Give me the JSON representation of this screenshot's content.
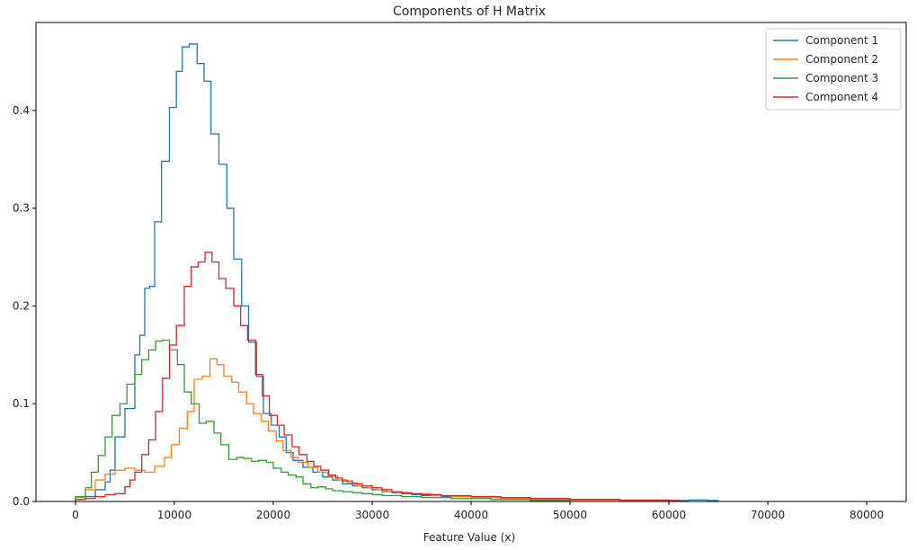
{
  "chart_data": {
    "type": "histogram-step",
    "title": "Components of H Matrix",
    "xlabel": "Feature Value (x)",
    "ylabel": "",
    "xlim": [
      -4000,
      84000
    ],
    "ylim": [
      0,
      0.49
    ],
    "xticks": [
      0,
      10000,
      20000,
      30000,
      40000,
      50000,
      60000,
      70000,
      80000
    ],
    "yticks": [
      0.0,
      0.1,
      0.2,
      0.3,
      0.4
    ],
    "ytick_labels": [
      "0.0",
      "0.1",
      "0.2",
      "0.3",
      "0.4"
    ],
    "grid": false,
    "legend_position": "top-right",
    "series": [
      {
        "name": "Component 1",
        "color": "#1f77b4",
        "points": [
          [
            0,
            0.002
          ],
          [
            1000,
            0.005
          ],
          [
            2000,
            0.012
          ],
          [
            3000,
            0.02
          ],
          [
            3500,
            0.032
          ],
          [
            4000,
            0.066
          ],
          [
            5000,
            0.095
          ],
          [
            6000,
            0.15
          ],
          [
            6500,
            0.17
          ],
          [
            7000,
            0.218
          ],
          [
            7500,
            0.22
          ],
          [
            8000,
            0.286
          ],
          [
            8700,
            0.348
          ],
          [
            9500,
            0.403
          ],
          [
            10200,
            0.44
          ],
          [
            10800,
            0.465
          ],
          [
            11500,
            0.468
          ],
          [
            12300,
            0.448
          ],
          [
            13000,
            0.43
          ],
          [
            13700,
            0.376
          ],
          [
            14500,
            0.345
          ],
          [
            15300,
            0.3
          ],
          [
            16000,
            0.248
          ],
          [
            16800,
            0.2
          ],
          [
            17500,
            0.163
          ],
          [
            18300,
            0.128
          ],
          [
            19000,
            0.09
          ],
          [
            19800,
            0.078
          ],
          [
            20600,
            0.066
          ],
          [
            21300,
            0.05
          ],
          [
            22000,
            0.042
          ],
          [
            23000,
            0.035
          ],
          [
            24000,
            0.03
          ],
          [
            25000,
            0.025
          ],
          [
            26000,
            0.022
          ],
          [
            27000,
            0.018
          ],
          [
            28000,
            0.016
          ],
          [
            29000,
            0.014
          ],
          [
            30000,
            0.012
          ],
          [
            31000,
            0.01
          ],
          [
            32000,
            0.009
          ],
          [
            33000,
            0.008
          ],
          [
            34000,
            0.007
          ],
          [
            35000,
            0.006
          ],
          [
            37000,
            0.005
          ],
          [
            40000,
            0.004
          ],
          [
            45000,
            0.003
          ],
          [
            50000,
            0.002
          ],
          [
            55000,
            0.001
          ],
          [
            60000,
            0.001
          ],
          [
            62000,
            0.0015
          ],
          [
            64000,
            0.001
          ],
          [
            65000,
            0
          ]
        ]
      },
      {
        "name": "Component 2",
        "color": "#ff7f0e",
        "points": [
          [
            0,
            0.004
          ],
          [
            1000,
            0.012
          ],
          [
            2000,
            0.022
          ],
          [
            3000,
            0.028
          ],
          [
            4000,
            0.032
          ],
          [
            5000,
            0.034
          ],
          [
            6000,
            0.032
          ],
          [
            7000,
            0.03
          ],
          [
            8000,
            0.036
          ],
          [
            9000,
            0.045
          ],
          [
            9700,
            0.058
          ],
          [
            10500,
            0.075
          ],
          [
            11300,
            0.092
          ],
          [
            12000,
            0.125
          ],
          [
            12800,
            0.128
          ],
          [
            13600,
            0.146
          ],
          [
            14300,
            0.14
          ],
          [
            15000,
            0.128
          ],
          [
            15800,
            0.122
          ],
          [
            16500,
            0.112
          ],
          [
            17300,
            0.1
          ],
          [
            18000,
            0.09
          ],
          [
            18800,
            0.082
          ],
          [
            19500,
            0.072
          ],
          [
            20300,
            0.062
          ],
          [
            21000,
            0.052
          ],
          [
            21800,
            0.045
          ],
          [
            22500,
            0.04
          ],
          [
            23500,
            0.035
          ],
          [
            24500,
            0.03
          ],
          [
            25500,
            0.026
          ],
          [
            26500,
            0.022
          ],
          [
            27500,
            0.019
          ],
          [
            28500,
            0.016
          ],
          [
            29500,
            0.014
          ],
          [
            30500,
            0.012
          ],
          [
            31500,
            0.01
          ],
          [
            32500,
            0.009
          ],
          [
            34000,
            0.008
          ],
          [
            36000,
            0.006
          ],
          [
            38000,
            0.005
          ],
          [
            40000,
            0.004
          ],
          [
            43000,
            0.003
          ],
          [
            46000,
            0.002
          ],
          [
            50000,
            0.0015
          ],
          [
            55000,
            0.001
          ],
          [
            60000,
            0.0008
          ],
          [
            61000,
            0
          ]
        ]
      },
      {
        "name": "Component 3",
        "color": "#2ca02c",
        "points": [
          [
            0,
            0.005
          ],
          [
            1000,
            0.014
          ],
          [
            1600,
            0.03
          ],
          [
            2300,
            0.047
          ],
          [
            3000,
            0.066
          ],
          [
            3700,
            0.088
          ],
          [
            4500,
            0.1
          ],
          [
            5200,
            0.12
          ],
          [
            6000,
            0.13
          ],
          [
            6700,
            0.145
          ],
          [
            7400,
            0.155
          ],
          [
            8100,
            0.164
          ],
          [
            8800,
            0.165
          ],
          [
            9500,
            0.155
          ],
          [
            10300,
            0.14
          ],
          [
            11000,
            0.112
          ],
          [
            11700,
            0.1
          ],
          [
            12500,
            0.08
          ],
          [
            13200,
            0.082
          ],
          [
            14000,
            0.07
          ],
          [
            14700,
            0.058
          ],
          [
            15500,
            0.043
          ],
          [
            16300,
            0.045
          ],
          [
            17000,
            0.044
          ],
          [
            17800,
            0.041
          ],
          [
            18500,
            0.042
          ],
          [
            19300,
            0.04
          ],
          [
            20000,
            0.034
          ],
          [
            20800,
            0.03
          ],
          [
            21500,
            0.027
          ],
          [
            22300,
            0.025
          ],
          [
            23000,
            0.018
          ],
          [
            23800,
            0.014
          ],
          [
            24500,
            0.015
          ],
          [
            25300,
            0.013
          ],
          [
            26000,
            0.011
          ],
          [
            27000,
            0.01
          ],
          [
            28000,
            0.009
          ],
          [
            29000,
            0.008
          ],
          [
            30000,
            0.007
          ],
          [
            31000,
            0.006
          ],
          [
            33000,
            0.005
          ],
          [
            35000,
            0.004
          ],
          [
            38000,
            0.003
          ],
          [
            42000,
            0.002
          ],
          [
            46000,
            0.001
          ],
          [
            50000,
            0
          ]
        ]
      },
      {
        "name": "Component 4",
        "color": "#d62728",
        "points": [
          [
            0,
            0.002
          ],
          [
            1000,
            0.003
          ],
          [
            2000,
            0.005
          ],
          [
            3000,
            0.007
          ],
          [
            4000,
            0.008
          ],
          [
            5000,
            0.015
          ],
          [
            5500,
            0.022
          ],
          [
            6000,
            0.03
          ],
          [
            6700,
            0.048
          ],
          [
            7400,
            0.063
          ],
          [
            8100,
            0.092
          ],
          [
            8800,
            0.126
          ],
          [
            9500,
            0.16
          ],
          [
            10200,
            0.18
          ],
          [
            11000,
            0.22
          ],
          [
            11700,
            0.24
          ],
          [
            12400,
            0.245
          ],
          [
            13100,
            0.255
          ],
          [
            13800,
            0.245
          ],
          [
            14500,
            0.228
          ],
          [
            15200,
            0.218
          ],
          [
            16000,
            0.2
          ],
          [
            16700,
            0.18
          ],
          [
            17400,
            0.165
          ],
          [
            18200,
            0.13
          ],
          [
            18900,
            0.108
          ],
          [
            19600,
            0.088
          ],
          [
            20400,
            0.078
          ],
          [
            21100,
            0.068
          ],
          [
            21900,
            0.056
          ],
          [
            22600,
            0.048
          ],
          [
            23400,
            0.041
          ],
          [
            24100,
            0.036
          ],
          [
            24800,
            0.032
          ],
          [
            25600,
            0.027
          ],
          [
            26300,
            0.024
          ],
          [
            27000,
            0.021
          ],
          [
            28000,
            0.018
          ],
          [
            29000,
            0.016
          ],
          [
            30000,
            0.014
          ],
          [
            31000,
            0.012
          ],
          [
            32000,
            0.01
          ],
          [
            33000,
            0.009
          ],
          [
            34000,
            0.008
          ],
          [
            35000,
            0.007
          ],
          [
            37000,
            0.006
          ],
          [
            40000,
            0.005
          ],
          [
            43000,
            0.004
          ],
          [
            46000,
            0.003
          ],
          [
            50000,
            0.002
          ],
          [
            55000,
            0.0015
          ],
          [
            60000,
            0.001
          ],
          [
            61000,
            0
          ]
        ]
      }
    ]
  }
}
